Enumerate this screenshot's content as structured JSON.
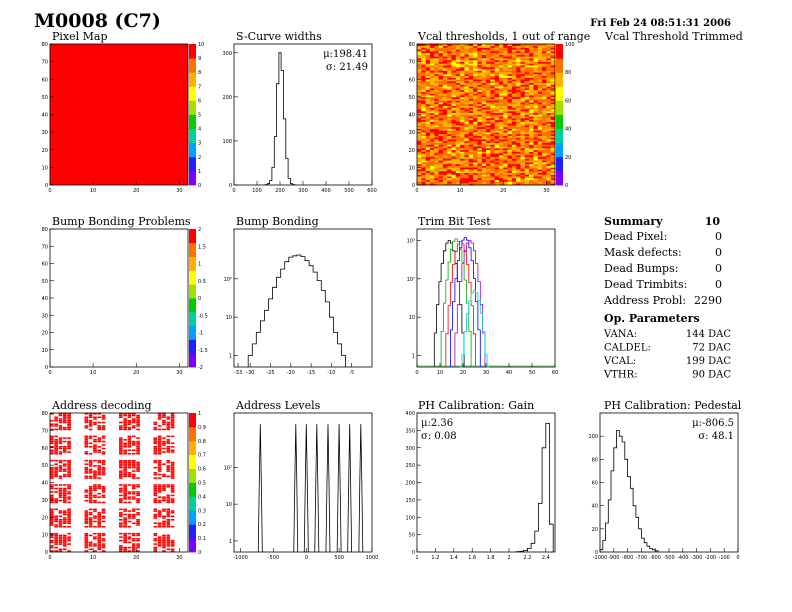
{
  "header": {
    "title": "M0008 (C7)",
    "timestamp": "Fri Feb 24 08:51:31 2006"
  },
  "summary": {
    "title": "Summary",
    "title_value": "10",
    "rows": [
      {
        "label": "Dead Pixel:",
        "value": "0"
      },
      {
        "label": "Mask defects:",
        "value": "0"
      },
      {
        "label": "Dead Bumps:",
        "value": "0"
      },
      {
        "label": "Dead Trimbits:",
        "value": "0"
      },
      {
        "label": "Address Probl:",
        "value": "2290"
      }
    ],
    "op_title": "Op. Parameters",
    "op_rows": [
      {
        "label": "VANA:",
        "value": "144 DAC"
      },
      {
        "label": "CALDEL:",
        "value": "72 DAC"
      },
      {
        "label": "VCAL:",
        "value": "199 DAC"
      },
      {
        "label": "VTHR:",
        "value": "90 DAC"
      }
    ]
  },
  "labels": {
    "vcal_trimmed": "Vcal Threshold Trimmed"
  },
  "colors": {
    "palette": [
      "#7a00ff",
      "#2020ff",
      "#00a0ff",
      "#00d0a0",
      "#00cc00",
      "#a0e000",
      "#ffff00",
      "#ffb000",
      "#ff7000",
      "#ff0000"
    ],
    "line": "#000000",
    "trim_series": [
      "#000000",
      "#00aa00",
      "#ff0000",
      "#0000ff",
      "#aa00aa",
      "#00cccc"
    ]
  },
  "chart_data": [
    {
      "id": "pixel-map",
      "type": "heatmap",
      "title": "Pixel Map",
      "xlim": [
        0,
        32
      ],
      "ylim": [
        0,
        80
      ],
      "x_ticks": [
        "0",
        "10",
        "20",
        "30"
      ],
      "y_ticks": [
        "0",
        "10",
        "20",
        "30",
        "40",
        "50",
        "60",
        "70",
        "80"
      ],
      "zlim": [
        0,
        10
      ],
      "z_ticks": [
        "0",
        "1",
        "2",
        "3",
        "4",
        "5",
        "6",
        "7",
        "8",
        "9",
        "10"
      ],
      "uniform_value": 10
    },
    {
      "id": "scurve-widths",
      "type": "bar",
      "title": "S-Curve widths",
      "xlim": [
        0,
        600
      ],
      "ylim": [
        0,
        320
      ],
      "x_ticks": [
        "0",
        "100",
        "200",
        "300",
        "400",
        "500",
        "600"
      ],
      "y_ticks": [
        "0",
        "100",
        "200",
        "300"
      ],
      "stats": [
        "μ:198.41",
        "σ: 21.49"
      ],
      "x": [
        140,
        150,
        160,
        170,
        180,
        190,
        200,
        210,
        220,
        230,
        240,
        250,
        260
      ],
      "values": [
        1,
        3,
        10,
        40,
        110,
        230,
        300,
        260,
        150,
        60,
        15,
        3,
        1
      ]
    },
    {
      "id": "vcal-thresholds",
      "type": "heatmap",
      "title": "Vcal thresholds, 1 out of range",
      "xlim": [
        0,
        32
      ],
      "ylim": [
        0,
        80
      ],
      "x_ticks": [
        "0",
        "10",
        "20",
        "30"
      ],
      "y_ticks": [
        "0",
        "10",
        "20",
        "30",
        "40",
        "50",
        "60",
        "70",
        "80"
      ],
      "zlim": [
        0,
        120
      ],
      "z_ticks": [
        "0",
        "20",
        "40",
        "60",
        "80",
        "100"
      ],
      "mean": 100,
      "spread": 14
    },
    {
      "id": "bump-bonding-problems",
      "type": "heatmap",
      "title": "Bump Bonding Problems",
      "xlim": [
        0,
        32
      ],
      "ylim": [
        0,
        80
      ],
      "x_ticks": [
        "0",
        "10",
        "20",
        "30"
      ],
      "y_ticks": [
        "0",
        "10",
        "20",
        "30",
        "40",
        "50",
        "60",
        "70",
        "80"
      ],
      "z_ticks": [
        "-2",
        "-1.5",
        "-1",
        "-0.5",
        "0",
        "0.5",
        "1",
        "1.5",
        "2"
      ],
      "empty": true
    },
    {
      "id": "bump-bonding",
      "type": "bar",
      "title": "Bump Bonding",
      "log_y": true,
      "xlim": [
        -34,
        0
      ],
      "ylim": [
        0.5,
        2000
      ],
      "x_ticks": [
        "-33",
        "-30",
        "-25",
        "-20",
        "-15",
        "-10",
        "-5"
      ],
      "y_ticks": [
        "1",
        "10",
        "10²"
      ],
      "x": [
        -30,
        -29,
        -28,
        -27,
        -26,
        -25,
        -24,
        -23,
        -22,
        -21,
        -20,
        -19,
        -18,
        -17,
        -16,
        -15,
        -14,
        -13,
        -12,
        -11,
        -10,
        -9,
        -8,
        -7
      ],
      "values": [
        1,
        2,
        4,
        8,
        15,
        30,
        60,
        110,
        180,
        280,
        370,
        400,
        420,
        380,
        300,
        220,
        150,
        90,
        50,
        25,
        10,
        4,
        2,
        1
      ]
    },
    {
      "id": "trim-bit-test",
      "type": "line",
      "title": "Trim Bit Test",
      "log_y": true,
      "xlim": [
        0,
        60
      ],
      "ylim": [
        0.5,
        2000
      ],
      "x_ticks": [
        "0",
        "10",
        "20",
        "30",
        "40",
        "50",
        "60"
      ],
      "y_ticks": [
        "1",
        "10",
        "10²",
        "10³"
      ],
      "series": [
        {
          "center": 14,
          "peak": 1000
        },
        {
          "center": 17,
          "peak": 1100
        },
        {
          "center": 19,
          "peak": 950
        },
        {
          "center": 21,
          "peak": 1200
        },
        {
          "center": 23,
          "peak": 1000
        },
        {
          "center": 25,
          "peak": 50
        }
      ]
    },
    {
      "id": "address-decoding",
      "type": "heatmap",
      "title": "Address decoding",
      "xlim": [
        0,
        32
      ],
      "ylim": [
        0,
        80
      ],
      "x_ticks": [
        "0",
        "10",
        "20",
        "30"
      ],
      "y_ticks": [
        "0",
        "10",
        "20",
        "30",
        "40",
        "50",
        "60",
        "70",
        "80"
      ],
      "zlim": [
        0,
        1
      ],
      "z_ticks": [
        "0",
        "0.1",
        "0.2",
        "0.3",
        "0.4",
        "0.5",
        "0.6",
        "0.7",
        "0.8",
        "0.9",
        "1"
      ]
    },
    {
      "id": "address-levels",
      "type": "bar",
      "title": "Address Levels",
      "log_y": true,
      "xlim": [
        -1100,
        1000
      ],
      "ylim": [
        0.5,
        3000
      ],
      "x_ticks": [
        "-1000",
        "-500",
        "0",
        "500",
        "1000"
      ],
      "y_ticks": [
        "1",
        "10",
        "10²"
      ],
      "peaks": [
        -700,
        -160,
        0,
        160,
        330,
        500,
        660,
        830
      ],
      "peak_value": 1500
    },
    {
      "id": "ph-gain",
      "type": "bar",
      "title": "PH Calibration: Gain",
      "xlim": [
        1,
        2.5
      ],
      "ylim": [
        0,
        400
      ],
      "x_ticks": [
        "1",
        "1.2",
        "1.4",
        "1.6",
        "1.8",
        "2",
        "2.2",
        "2.4"
      ],
      "y_ticks": [
        "0",
        "50",
        "100",
        "150",
        "200",
        "250",
        "300",
        "350",
        "400"
      ],
      "stats": [
        "μ:2.36",
        "σ: 0.08"
      ],
      "x": [
        2.1,
        2.14,
        2.18,
        2.22,
        2.26,
        2.3,
        2.34,
        2.38,
        2.42,
        2.46
      ],
      "values": [
        1,
        2,
        5,
        10,
        25,
        60,
        140,
        300,
        370,
        80
      ]
    },
    {
      "id": "ph-pedestal",
      "type": "bar",
      "title": "PH Calibration: Pedestal",
      "xlim": [
        -1000,
        0
      ],
      "ylim": [
        0,
        120
      ],
      "x_ticks": [
        "-1000",
        "-900",
        "-800",
        "-700",
        "-600",
        "-500",
        "-400",
        "-300",
        "-200",
        "-100",
        "0"
      ],
      "y_ticks": [
        "0",
        "20",
        "40",
        "60",
        "80",
        "100"
      ],
      "stats": [
        "μ:-806.5",
        "σ: 48.1"
      ],
      "x": [
        -990,
        -970,
        -950,
        -930,
        -910,
        -890,
        -870,
        -850,
        -830,
        -810,
        -790,
        -770,
        -750,
        -730,
        -710,
        -690,
        -670,
        -650,
        -630,
        -610,
        -590
      ],
      "values": [
        2,
        10,
        25,
        45,
        70,
        90,
        105,
        100,
        95,
        80,
        65,
        55,
        40,
        30,
        20,
        12,
        8,
        5,
        3,
        2,
        1
      ]
    }
  ]
}
